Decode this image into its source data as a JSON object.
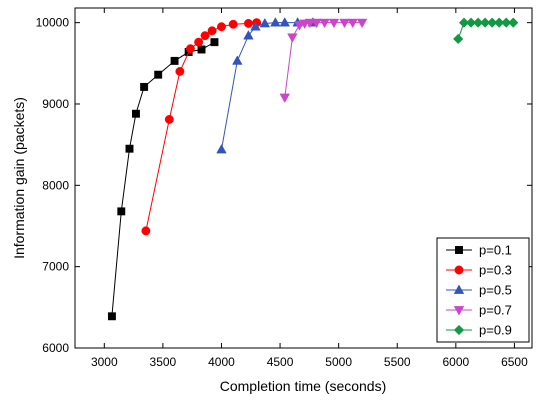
{
  "chart_data": {
    "type": "line",
    "xlabel": "Completion time (seconds)",
    "ylabel": "Information gain (packets)",
    "xlim": [
      2750,
      6650
    ],
    "ylim": [
      6000,
      10180
    ],
    "xticks": [
      3000,
      3500,
      4000,
      4500,
      5000,
      5500,
      6000,
      6500
    ],
    "yticks": [
      6000,
      7000,
      8000,
      9000,
      10000
    ],
    "legend_position": "bottom-right",
    "series": [
      {
        "name": "p=0.1",
        "color": "#000000",
        "marker": "square",
        "points": [
          [
            3065,
            6390
          ],
          [
            3145,
            7680
          ],
          [
            3215,
            8450
          ],
          [
            3270,
            8880
          ],
          [
            3340,
            9210
          ],
          [
            3460,
            9360
          ],
          [
            3600,
            9530
          ],
          [
            3720,
            9640
          ],
          [
            3830,
            9670
          ],
          [
            3940,
            9760
          ]
        ]
      },
      {
        "name": "p=0.3",
        "color": "#ff0000",
        "marker": "circle",
        "points": [
          [
            3355,
            7440
          ],
          [
            3555,
            8810
          ],
          [
            3645,
            9400
          ],
          [
            3735,
            9680
          ],
          [
            3805,
            9760
          ],
          [
            3860,
            9840
          ],
          [
            3920,
            9900
          ],
          [
            4000,
            9950
          ],
          [
            4100,
            9980
          ],
          [
            4230,
            9990
          ],
          [
            4300,
            10000
          ]
        ]
      },
      {
        "name": "p=0.5",
        "color": "#3355bb",
        "marker": "triangle-up",
        "points": [
          [
            4000,
            8440
          ],
          [
            4135,
            9530
          ],
          [
            4230,
            9840
          ],
          [
            4290,
            9950
          ],
          [
            4370,
            9990
          ],
          [
            4460,
            10000
          ],
          [
            4540,
            10000
          ],
          [
            4650,
            10000
          ],
          [
            4780,
            10000
          ]
        ]
      },
      {
        "name": "p=0.7",
        "color": "#cc44cc",
        "marker": "triangle-down",
        "points": [
          [
            4540,
            9080
          ],
          [
            4605,
            9820
          ],
          [
            4665,
            9970
          ],
          [
            4710,
            9990
          ],
          [
            4755,
            10000
          ],
          [
            4810,
            10000
          ],
          [
            4880,
            10000
          ],
          [
            4960,
            10000
          ],
          [
            5050,
            10000
          ],
          [
            5120,
            10000
          ],
          [
            5200,
            10000
          ]
        ]
      },
      {
        "name": "p=0.9",
        "color": "#119944",
        "marker": "diamond",
        "points": [
          [
            6020,
            9800
          ],
          [
            6070,
            10000
          ],
          [
            6130,
            10000
          ],
          [
            6190,
            10000
          ],
          [
            6250,
            10000
          ],
          [
            6310,
            10000
          ],
          [
            6370,
            10000
          ],
          [
            6430,
            10000
          ],
          [
            6490,
            10000
          ]
        ]
      }
    ]
  }
}
